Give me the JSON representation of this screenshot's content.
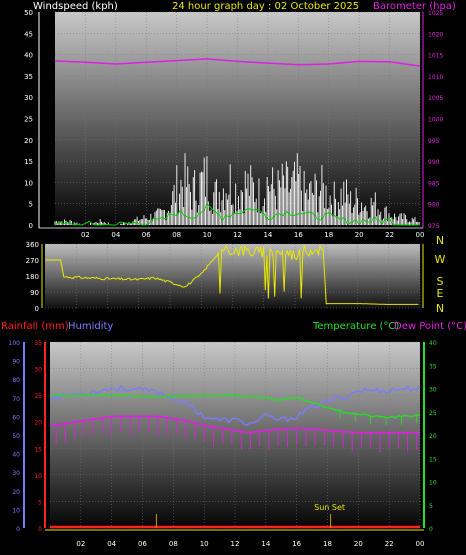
{
  "header": {
    "windspeed_label": "Windspeed (kph)",
    "title": "24 hour graph day : 02 October 2025",
    "barometer_label": "Barometer (hpa)"
  },
  "compass": [
    "N",
    "W",
    "S",
    "E",
    "N"
  ],
  "lower_header": {
    "rainfall_label": "Rainfall (mm)",
    "humidity_label": "Humidity",
    "temperature_label": "Temperature (°C)",
    "dewpoint_label": "Dew Point (°C)"
  },
  "annotation": "Sun Set",
  "colors": {
    "wind": "#ffffff",
    "gust": "#ffffff",
    "wind_avg": "#00d000",
    "barometer": "#e020e0",
    "direction": "#e8e800",
    "temperature": "#22e022",
    "dewpoint": "#e020e0",
    "humidity": "#7b7bff",
    "rainfall": "#ff2020",
    "label_yellow": "#e8e800"
  },
  "chart_data": [
    {
      "type": "area",
      "name": "wind-barometer",
      "x_ticks": [
        "02",
        "04",
        "06",
        "08",
        "10",
        "12",
        "14",
        "16",
        "18",
        "20",
        "22",
        "00"
      ],
      "y_left_label": "Windspeed (kph)",
      "y_left_ticks": [
        0,
        5,
        10,
        15,
        20,
        25,
        30,
        35,
        40,
        45,
        50
      ],
      "ylim_left": [
        0,
        50
      ],
      "y_right_label": "Barometer (hpa)",
      "y_right_ticks": [
        975,
        980,
        985,
        990,
        995,
        1000,
        1005,
        1010,
        1015,
        1020,
        1025
      ],
      "ylim_right": [
        975,
        1025
      ],
      "series": [
        {
          "name": "Windspeed (kph)",
          "axis": "left",
          "x": [
            0,
            1,
            2,
            3,
            4,
            5,
            6,
            7,
            7.5,
            8,
            8.5,
            9,
            9.5,
            10,
            10.5,
            11,
            11.5,
            12,
            12.5,
            13,
            13.5,
            14,
            14.5,
            15,
            15.5,
            16,
            16.5,
            17,
            17.5,
            18,
            18.5,
            19,
            19.5,
            20,
            20.5,
            21,
            21.5,
            22,
            22.5,
            23,
            24
          ],
          "values": [
            1,
            1,
            0,
            1,
            0,
            1,
            2,
            3,
            5,
            10,
            12,
            9,
            11,
            13,
            8,
            10,
            12,
            9,
            11,
            10,
            8,
            12,
            9,
            11,
            10,
            12,
            8,
            9,
            10,
            8,
            7,
            9,
            6,
            7,
            5,
            6,
            4,
            3,
            2,
            2,
            1
          ]
        },
        {
          "name": "Barometer (hpa)",
          "axis": "right",
          "x": [
            0,
            2,
            4,
            6,
            8,
            10,
            12,
            14,
            16,
            18,
            20,
            22,
            24
          ],
          "values": [
            1013.5,
            1013.2,
            1012.8,
            1013.2,
            1013.6,
            1014.0,
            1013.4,
            1013.0,
            1012.6,
            1012.8,
            1013.4,
            1013.3,
            1012.3
          ]
        },
        {
          "name": "Wind average",
          "axis": "left",
          "x": [
            0,
            4,
            7,
            8,
            9,
            10,
            11,
            12,
            13,
            14,
            15,
            16,
            17,
            18,
            19,
            20,
            21,
            22,
            23,
            24
          ],
          "values": [
            0,
            0,
            1,
            3,
            2,
            4,
            2,
            3,
            4,
            2,
            3,
            3,
            2,
            2,
            1,
            1,
            1,
            1,
            0,
            0
          ]
        }
      ]
    },
    {
      "type": "line",
      "name": "wind-direction",
      "y_ticks": [
        0,
        90,
        180,
        270,
        360
      ],
      "ylim": [
        0,
        360
      ],
      "series": [
        {
          "name": "Wind direction",
          "x": [
            0,
            1,
            1.2,
            4,
            6,
            7,
            9,
            10,
            11,
            12,
            13,
            14,
            15,
            16,
            17,
            17.8,
            18,
            20,
            22,
            24
          ],
          "values": [
            270,
            270,
            175,
            165,
            160,
            170,
            120,
            190,
            300,
            330,
            320,
            310,
            320,
            300,
            330,
            330,
            25,
            25,
            20,
            20
          ]
        }
      ]
    },
    {
      "type": "line",
      "name": "temp-humidity-rain",
      "x_ticks": [
        "02",
        "04",
        "06",
        "08",
        "10",
        "12",
        "14",
        "16",
        "18",
        "20",
        "22",
        "00"
      ],
      "y_rain_label": "Rainfall (mm)",
      "y_rain_ticks": [
        0,
        5,
        10,
        15,
        20,
        25,
        30,
        35
      ],
      "ylim_rain": [
        0,
        35
      ],
      "y_humidity_label": "Humidity",
      "y_humidity_ticks": [
        0,
        10,
        20,
        30,
        40,
        50,
        60,
        70,
        80,
        90,
        100
      ],
      "ylim_humidity": [
        0,
        100
      ],
      "y_temp_label": "Temperature (°C)",
      "y_temp_ticks": [
        0,
        5,
        10,
        15,
        20,
        25,
        30,
        35,
        40
      ],
      "ylim_temp": [
        0,
        40
      ],
      "series": [
        {
          "name": "Temperature (°C)",
          "axis": "temp",
          "x": [
            0,
            2,
            4,
            6,
            8,
            10,
            12,
            14,
            15,
            16,
            17,
            18,
            19,
            20,
            21,
            22,
            23,
            24
          ],
          "values": [
            28.5,
            28.5,
            28.5,
            28.3,
            28.3,
            28.5,
            28.5,
            28.0,
            27.5,
            28.0,
            27.0,
            26.0,
            25.0,
            24.5,
            24.0,
            23.8,
            24.0,
            24.3
          ]
        },
        {
          "name": "Dew Point (°C)",
          "axis": "temp",
          "x": [
            0,
            2,
            4,
            6,
            7,
            8,
            9,
            10,
            11,
            12,
            13,
            14,
            16,
            18,
            20,
            22,
            24
          ],
          "values": [
            22.0,
            23.0,
            24.0,
            24.0,
            24.0,
            23.5,
            23.0,
            22.0,
            21.5,
            21.0,
            20.5,
            21.0,
            21.5,
            21.0,
            20.5,
            20.5,
            20.5
          ]
        },
        {
          "name": "Humidity",
          "axis": "humidity",
          "x": [
            0,
            2,
            4,
            5,
            6,
            7,
            8,
            9,
            10,
            11,
            12,
            13,
            14,
            15,
            16,
            17,
            18,
            19,
            20,
            21,
            22,
            23,
            24
          ],
          "values": [
            70,
            72,
            75,
            75,
            74,
            73,
            70,
            66,
            60,
            58,
            58,
            56,
            60,
            58,
            60,
            65,
            68,
            70,
            74,
            74,
            74,
            75,
            75
          ]
        },
        {
          "name": "Rainfall (mm)",
          "axis": "rain",
          "x": [
            0,
            24
          ],
          "values": [
            0,
            0
          ]
        }
      ]
    }
  ]
}
